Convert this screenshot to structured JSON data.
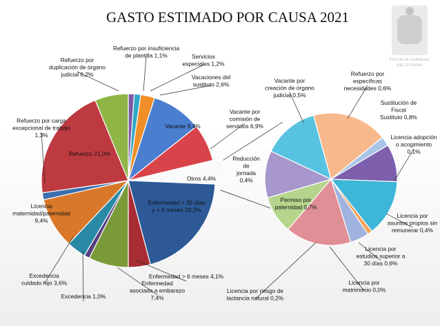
{
  "header": {
    "title": "GASTO ESTIMADO POR CAUSA 2021",
    "logo_text_1": "FISCALÍA GENERAL",
    "logo_text_2": "DEL ESTADO"
  },
  "chart_data": [
    {
      "type": "pie",
      "title": "GASTO ESTIMADO POR CAUSA 2021",
      "slices": [
        {
          "label": "Refuerzo por insuficiencia de plantilla 1,1%",
          "lines": [
            "Refuerzo por insuficiencia",
            "de plantilla 1,1%"
          ],
          "value": 1.1,
          "color": "#7a5aa6"
        },
        {
          "label": "Servicios especiales 1,2%",
          "lines": [
            "Servicios",
            "especiales 1,2%"
          ],
          "value": 1.2,
          "color": "#2fa8c6"
        },
        {
          "label": "Vacaciones del sustituto 2,6%",
          "lines": [
            "Vacaciones del",
            "sustituto 2,6%"
          ],
          "value": 2.6,
          "color": "#f08f2a"
        },
        {
          "label": "Vacante 9,4%",
          "lines": [
            "Vacante 9,4%"
          ],
          "value": 9.4,
          "color": "#4a7fcf"
        },
        {
          "label": "Vacante por comisión de servicios 6,9%",
          "lines": [
            "Vacante por",
            "comisión de",
            "servicios 6,9%"
          ],
          "value": 6.9,
          "color": "#d9434a"
        },
        {
          "label": "Otros 4,4%",
          "lines": [
            "Otros 4,4%"
          ],
          "value": 4.4,
          "color": "#fafafa",
          "exploded": true
        },
        {
          "label": "Enfermedad > 30 días y < 6 meses 20,2%",
          "lines": [
            "Enfermedad > 30 días",
            "y < 6 meses 20,2%"
          ],
          "value": 20.2,
          "color": "#2d5a97"
        },
        {
          "label": "Enfermedad > 6 meses 4,1%",
          "lines": [
            "Enfermedad > 6 meses 4,1%"
          ],
          "value": 4.1,
          "color": "#a82c34"
        },
        {
          "label": "Enfermedad asociada a embarazo 7,4%",
          "lines": [
            "Enfermedad",
            "asociada a embarazo",
            "7,4%"
          ],
          "value": 7.4,
          "color": "#7a9a3a"
        },
        {
          "label": "Excedencia 1,0%",
          "lines": [
            "Excedencia 1,0%"
          ],
          "value": 1.0,
          "color": "#56407e"
        },
        {
          "label": "Excedencia cuidado hijo 3,6%",
          "lines": [
            "Excedencia",
            "cuidado hijo 3,6%"
          ],
          "value": 3.6,
          "color": "#2a8aa6"
        },
        {
          "label": "Licencia maternidad/paternidad 9,4%",
          "lines": [
            "Licencia",
            "maternidad/paternidad",
            "9,4%"
          ],
          "value": 9.4,
          "color": "#d9782a"
        },
        {
          "label": "Refuerzo por carga excepcional de trabajo 1,3%",
          "lines": [
            "Refuerzo por carga",
            "excepcional de trabajo",
            "1,3%"
          ],
          "value": 1.3,
          "color": "#3b6fb0"
        },
        {
          "label": "Refuerzo 21,0%",
          "lines": [
            "Refuerzo 21,0%"
          ],
          "value": 21.0,
          "color": "#be3a41"
        },
        {
          "label": "Refuerzo por duplicación de órgano judicial 6,2%",
          "lines": [
            "Refuerzo por",
            "duplicación de órgano",
            "judicial 6,2%"
          ],
          "value": 6.2,
          "color": "#8fb546"
        }
      ]
    },
    {
      "type": "pie",
      "breakdown_of": "Otros 4,4%",
      "slices": [
        {
          "label": "Refuerzo por específicas necesidades 0,6%",
          "lines": [
            "Refuerzo por",
            "específicas",
            "necesidades 0,6%"
          ],
          "value": 0.6,
          "color": "#58c3e0"
        },
        {
          "label": "Sustitución de Fiscal Sustituto 0,8%",
          "lines": [
            "Sustitución de",
            "Fiscal",
            "Sustituto 0,8%"
          ],
          "value": 0.8,
          "color": "#f7b98c"
        },
        {
          "label": "Licencia adopción o acogimiento 0,1%",
          "lines": [
            "Licencia adopción",
            "o acogimiento",
            "0,1%"
          ],
          "value": 0.1,
          "color": "#aac4e8"
        },
        {
          "label": "Licencia por asuntos propios sin remunerar 0,4%",
          "lines": [
            "Licencia por",
            "asuntos propios sin",
            "remunerar 0,4%"
          ],
          "value": 0.4,
          "color": "#7d5fae"
        },
        {
          "label": "Licencia por estudios superior a 30 días 0,6%",
          "lines": [
            "Licencia por",
            "estudios superior a",
            "30 días 0,6%"
          ],
          "value": 0.6,
          "color": "#3db6d8"
        },
        {
          "label": "Licencia por matrimonio 0,0%",
          "lines": [
            "Licencia por",
            "matrimonio 0,0%"
          ],
          "value": 0.0,
          "color": "#f3a25a"
        },
        {
          "label": "Licencia por riesgo de lactancia natural 0,2%",
          "lines": [
            "Licencia por riesgo de",
            "lactancia natural 0,2%"
          ],
          "value": 0.2,
          "color": "#9fb3de"
        },
        {
          "label": "Permiso por paternidad 0,7%",
          "lines": [
            "Permiso por",
            "paternidad 0,7%"
          ],
          "value": 0.7,
          "color": "#e08f96"
        },
        {
          "label": "Reducción de jornada 0,4%",
          "lines": [
            "Reducción",
            "de",
            "jornada",
            "0,4%"
          ],
          "value": 0.4,
          "color": "#b5d48c"
        },
        {
          "label": "Vacante por creación de órgano judicial 0,5%",
          "lines": [
            "Vacante por",
            "creación de órgano",
            "judicial 0,5%"
          ],
          "value": 0.5,
          "color": "#a797cc"
        }
      ]
    }
  ]
}
